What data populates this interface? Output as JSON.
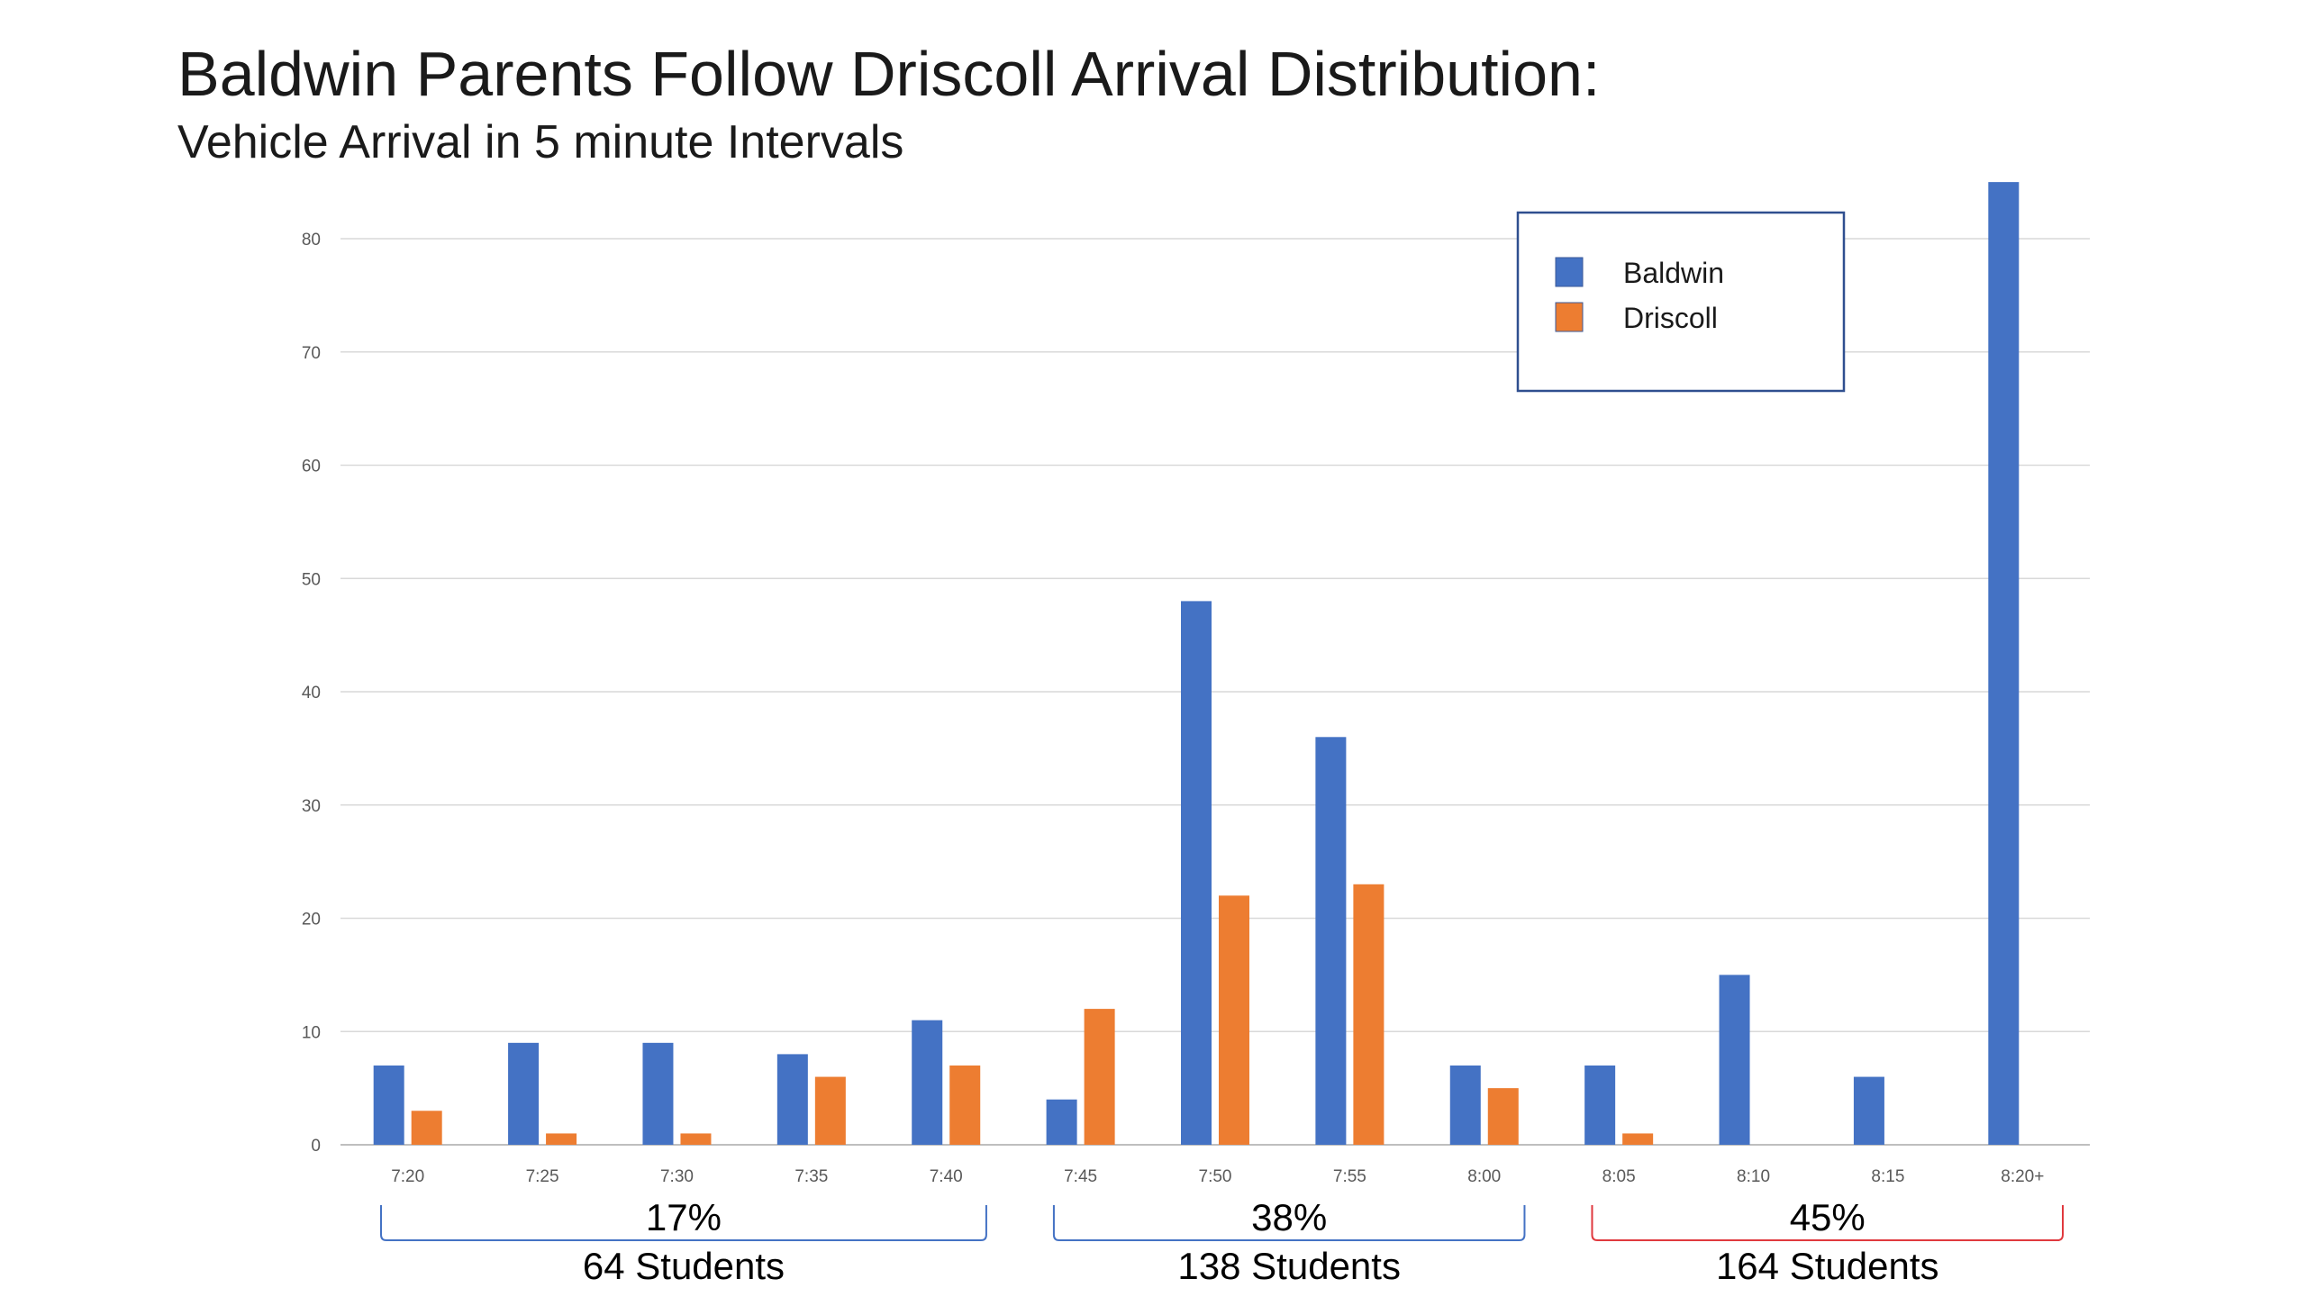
{
  "chart_data": {
    "type": "bar",
    "title": "Baldwin Parents Follow Driscoll Arrival Distribution:",
    "subtitle": "Vehicle Arrival in 5 minute Intervals",
    "categories": [
      "7:20",
      "7:25",
      "7:30",
      "7:35",
      "7:40",
      "7:45",
      "7:50",
      "7:55",
      "8:00",
      "8:05",
      "8:10",
      "8:15",
      "8:20+"
    ],
    "series": [
      {
        "name": "Baldwin",
        "color": "#4472c4",
        "values": [
          7,
          9,
          9,
          8,
          11,
          4,
          48,
          36,
          7,
          7,
          15,
          6,
          85
        ]
      },
      {
        "name": "Driscoll",
        "color": "#ed7d31",
        "values": [
          3,
          1,
          1,
          6,
          7,
          12,
          22,
          23,
          5,
          1,
          0,
          0,
          0
        ]
      }
    ],
    "y_ticks": [
      "0",
      "10",
      "20",
      "30",
      "40",
      "50",
      "60",
      "70",
      "80"
    ],
    "ylim": [
      0,
      80
    ],
    "grid": true,
    "legend_position": "top-right",
    "groups": [
      {
        "percent": "17%",
        "count": "64 Students",
        "from": "7:20",
        "to": "7:40",
        "color": "#4472c4"
      },
      {
        "percent": "38%",
        "count": "138 Students",
        "from": "7:45",
        "to": "8:00",
        "color": "#4472c4"
      },
      {
        "percent": "45%",
        "count": "164 Students",
        "from": "8:05",
        "to": "8:20+",
        "color": "#e0393e"
      }
    ]
  }
}
